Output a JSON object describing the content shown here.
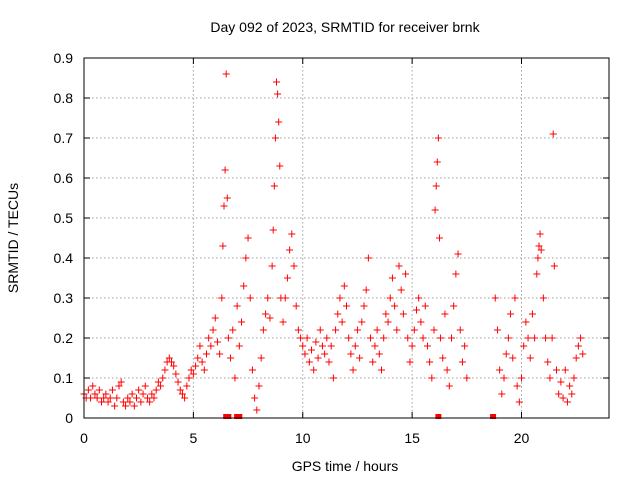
{
  "chart_data": {
    "type": "scatter",
    "title": "Day 092 of 2023, SRMTID for receiver brnk",
    "xlabel": "GPS time / hours",
    "ylabel": "SRMTID / TECUs",
    "xlim": [
      0,
      24
    ],
    "ylim": [
      0,
      0.9
    ],
    "xticks": [
      0,
      5,
      10,
      15,
      20
    ],
    "xtick_labels": [
      "0",
      "5",
      "10",
      "15",
      "20"
    ],
    "yticks": [
      0,
      0.1,
      0.2,
      0.3,
      0.4,
      0.5,
      0.6,
      0.7,
      0.8,
      0.9
    ],
    "ytick_labels": [
      "0",
      "0.1",
      "0.2",
      "0.3",
      "0.4",
      "0.5",
      "0.6",
      "0.7",
      "0.8",
      "0.9"
    ],
    "grid": true,
    "marker": "+",
    "color": "#ff0000",
    "series": [
      {
        "name": "SRMTID",
        "points": [
          [
            0.0,
            0.06
          ],
          [
            0.1,
            0.05
          ],
          [
            0.2,
            0.07
          ],
          [
            0.3,
            0.05
          ],
          [
            0.4,
            0.08
          ],
          [
            0.5,
            0.06
          ],
          [
            0.6,
            0.05
          ],
          [
            0.7,
            0.07
          ],
          [
            0.8,
            0.04
          ],
          [
            0.9,
            0.05
          ],
          [
            1.0,
            0.06
          ],
          [
            1.1,
            0.04
          ],
          [
            1.2,
            0.05
          ],
          [
            1.3,
            0.07
          ],
          [
            1.4,
            0.03
          ],
          [
            1.5,
            0.05
          ],
          [
            1.6,
            0.08
          ],
          [
            1.7,
            0.09
          ],
          [
            1.8,
            0.04
          ],
          [
            1.9,
            0.03
          ],
          [
            2.0,
            0.05
          ],
          [
            2.1,
            0.04
          ],
          [
            2.2,
            0.06
          ],
          [
            2.3,
            0.03
          ],
          [
            2.4,
            0.05
          ],
          [
            2.5,
            0.07
          ],
          [
            2.6,
            0.04
          ],
          [
            2.7,
            0.06
          ],
          [
            2.8,
            0.08
          ],
          [
            2.9,
            0.05
          ],
          [
            3.0,
            0.04
          ],
          [
            3.1,
            0.06
          ],
          [
            3.2,
            0.05
          ],
          [
            3.3,
            0.07
          ],
          [
            3.4,
            0.09
          ],
          [
            3.5,
            0.08
          ],
          [
            3.6,
            0.1
          ],
          [
            3.7,
            0.12
          ],
          [
            3.8,
            0.14
          ],
          [
            3.9,
            0.15
          ],
          [
            4.0,
            0.14
          ],
          [
            4.1,
            0.13
          ],
          [
            4.2,
            0.11
          ],
          [
            4.3,
            0.09
          ],
          [
            4.4,
            0.07
          ],
          [
            4.5,
            0.06
          ],
          [
            4.6,
            0.05
          ],
          [
            4.7,
            0.08
          ],
          [
            4.8,
            0.1
          ],
          [
            4.9,
            0.12
          ],
          [
            5.0,
            0.11
          ],
          [
            5.1,
            0.13
          ],
          [
            5.2,
            0.15
          ],
          [
            5.3,
            0.18
          ],
          [
            5.4,
            0.14
          ],
          [
            5.5,
            0.12
          ],
          [
            5.6,
            0.16
          ],
          [
            5.7,
            0.2
          ],
          [
            5.8,
            0.18
          ],
          [
            5.9,
            0.22
          ],
          [
            6.0,
            0.25
          ],
          [
            6.1,
            0.19
          ],
          [
            6.2,
            0.16
          ],
          [
            6.3,
            0.3
          ],
          [
            6.35,
            0.43
          ],
          [
            6.4,
            0.53
          ],
          [
            6.45,
            0.62
          ],
          [
            6.5,
            0.86
          ],
          [
            6.55,
            0.55
          ],
          [
            6.6,
            0.2
          ],
          [
            6.7,
            0.15
          ],
          [
            6.8,
            0.22
          ],
          [
            6.9,
            0.1
          ],
          [
            7.0,
            0.28
          ],
          [
            7.1,
            0.18
          ],
          [
            7.2,
            0.24
          ],
          [
            7.3,
            0.33
          ],
          [
            7.4,
            0.4
          ],
          [
            7.5,
            0.45
          ],
          [
            7.6,
            0.3
          ],
          [
            7.7,
            0.12
          ],
          [
            7.8,
            0.05
          ],
          [
            7.9,
            0.02
          ],
          [
            8.0,
            0.08
          ],
          [
            8.1,
            0.15
          ],
          [
            8.2,
            0.22
          ],
          [
            8.3,
            0.26
          ],
          [
            8.4,
            0.3
          ],
          [
            8.5,
            0.25
          ],
          [
            8.6,
            0.38
          ],
          [
            8.65,
            0.47
          ],
          [
            8.7,
            0.58
          ],
          [
            8.75,
            0.7
          ],
          [
            8.8,
            0.84
          ],
          [
            8.85,
            0.81
          ],
          [
            8.9,
            0.74
          ],
          [
            8.95,
            0.63
          ],
          [
            9.0,
            0.3
          ],
          [
            9.1,
            0.24
          ],
          [
            9.2,
            0.3
          ],
          [
            9.3,
            0.35
          ],
          [
            9.4,
            0.42
          ],
          [
            9.5,
            0.46
          ],
          [
            9.6,
            0.38
          ],
          [
            9.7,
            0.28
          ],
          [
            9.8,
            0.22
          ],
          [
            9.9,
            0.2
          ],
          [
            10.0,
            0.18
          ],
          [
            10.1,
            0.16
          ],
          [
            10.2,
            0.2
          ],
          [
            10.3,
            0.14
          ],
          [
            10.4,
            0.17
          ],
          [
            10.5,
            0.12
          ],
          [
            10.6,
            0.19
          ],
          [
            10.7,
            0.15
          ],
          [
            10.8,
            0.22
          ],
          [
            10.9,
            0.18
          ],
          [
            11.0,
            0.16
          ],
          [
            11.1,
            0.2
          ],
          [
            11.2,
            0.14
          ],
          [
            11.3,
            0.18
          ],
          [
            11.4,
            0.1
          ],
          [
            11.5,
            0.22
          ],
          [
            11.6,
            0.26
          ],
          [
            11.7,
            0.3
          ],
          [
            11.8,
            0.24
          ],
          [
            11.9,
            0.33
          ],
          [
            12.0,
            0.28
          ],
          [
            12.1,
            0.2
          ],
          [
            12.2,
            0.16
          ],
          [
            12.3,
            0.12
          ],
          [
            12.4,
            0.18
          ],
          [
            12.5,
            0.22
          ],
          [
            12.6,
            0.15
          ],
          [
            12.7,
            0.24
          ],
          [
            12.8,
            0.28
          ],
          [
            12.9,
            0.32
          ],
          [
            13.0,
            0.4
          ],
          [
            13.1,
            0.2
          ],
          [
            13.2,
            0.14
          ],
          [
            13.3,
            0.18
          ],
          [
            13.4,
            0.22
          ],
          [
            13.5,
            0.16
          ],
          [
            13.6,
            0.12
          ],
          [
            13.7,
            0.2
          ],
          [
            13.8,
            0.26
          ],
          [
            13.9,
            0.24
          ],
          [
            14.0,
            0.3
          ],
          [
            14.1,
            0.35
          ],
          [
            14.2,
            0.28
          ],
          [
            14.3,
            0.22
          ],
          [
            14.4,
            0.38
          ],
          [
            14.5,
            0.32
          ],
          [
            14.6,
            0.26
          ],
          [
            14.7,
            0.36
          ],
          [
            14.8,
            0.2
          ],
          [
            14.9,
            0.14
          ],
          [
            15.0,
            0.18
          ],
          [
            15.1,
            0.22
          ],
          [
            15.2,
            0.27
          ],
          [
            15.3,
            0.3
          ],
          [
            15.4,
            0.24
          ],
          [
            15.5,
            0.2
          ],
          [
            15.6,
            0.28
          ],
          [
            15.7,
            0.18
          ],
          [
            15.8,
            0.14
          ],
          [
            15.9,
            0.1
          ],
          [
            16.0,
            0.22
          ],
          [
            16.05,
            0.52
          ],
          [
            16.1,
            0.58
          ],
          [
            16.15,
            0.64
          ],
          [
            16.2,
            0.7
          ],
          [
            16.25,
            0.45
          ],
          [
            16.3,
            0.2
          ],
          [
            16.4,
            0.15
          ],
          [
            16.5,
            0.26
          ],
          [
            16.6,
            0.12
          ],
          [
            16.7,
            0.08
          ],
          [
            16.8,
            0.2
          ],
          [
            16.9,
            0.28
          ],
          [
            17.0,
            0.36
          ],
          [
            17.1,
            0.41
          ],
          [
            17.2,
            0.22
          ],
          [
            17.3,
            0.14
          ],
          [
            17.4,
            0.18
          ],
          [
            17.5,
            0.1
          ],
          [
            18.8,
            0.3
          ],
          [
            18.9,
            0.22
          ],
          [
            19.0,
            0.12
          ],
          [
            19.1,
            0.06
          ],
          [
            19.2,
            0.1
          ],
          [
            19.3,
            0.16
          ],
          [
            19.4,
            0.2
          ],
          [
            19.5,
            0.26
          ],
          [
            19.6,
            0.15
          ],
          [
            19.7,
            0.3
          ],
          [
            19.8,
            0.08
          ],
          [
            19.9,
            0.04
          ],
          [
            20.0,
            0.1
          ],
          [
            20.1,
            0.18
          ],
          [
            20.2,
            0.24
          ],
          [
            20.3,
            0.2
          ],
          [
            20.4,
            0.15
          ],
          [
            20.5,
            0.26
          ],
          [
            20.6,
            0.2
          ],
          [
            20.7,
            0.36
          ],
          [
            20.75,
            0.4
          ],
          [
            20.8,
            0.43
          ],
          [
            20.85,
            0.46
          ],
          [
            20.9,
            0.42
          ],
          [
            21.0,
            0.3
          ],
          [
            21.1,
            0.2
          ],
          [
            21.2,
            0.14
          ],
          [
            21.3,
            0.1
          ],
          [
            21.4,
            0.2
          ],
          [
            21.45,
            0.71
          ],
          [
            21.5,
            0.38
          ],
          [
            21.6,
            0.12
          ],
          [
            21.7,
            0.06
          ],
          [
            21.8,
            0.09
          ],
          [
            21.9,
            0.05
          ],
          [
            22.0,
            0.12
          ],
          [
            22.1,
            0.04
          ],
          [
            22.2,
            0.08
          ],
          [
            22.3,
            0.06
          ],
          [
            22.4,
            0.1
          ],
          [
            22.5,
            0.15
          ],
          [
            22.6,
            0.18
          ],
          [
            22.7,
            0.2
          ],
          [
            22.8,
            0.16
          ]
        ],
        "zero_markers": [
          6.5,
          6.6,
          7.0,
          7.1,
          16.2,
          18.7
        ]
      }
    ]
  }
}
